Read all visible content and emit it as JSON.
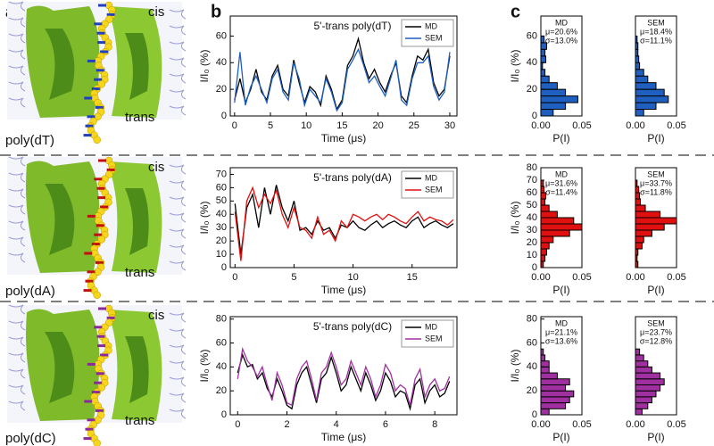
{
  "panel_labels": [
    "a",
    "b",
    "c"
  ],
  "structures": [
    {
      "label": "poly(dT)",
      "cis": "cis",
      "trans": "trans"
    },
    {
      "label": "poly(dA)",
      "cis": "cis",
      "trans": "trans"
    },
    {
      "label": "poly(dC)",
      "cis": "cis",
      "trans": "trans"
    }
  ],
  "chart_data": [
    {
      "type": "line",
      "title": "5'-trans poly(dT)",
      "xlabel": "Time (μs)",
      "ylabel": "I/I₀ (%)",
      "x": [
        0,
        0.75,
        1.5,
        2.25,
        3,
        3.75,
        4.5,
        5.25,
        6,
        6.75,
        7.5,
        8.25,
        9,
        9.75,
        10.5,
        11.25,
        12,
        12.75,
        13.5,
        14.25,
        15,
        15.75,
        16.5,
        17.25,
        18,
        18.75,
        19.5,
        20.25,
        21,
        21.75,
        22.5,
        23.25,
        24,
        24.75,
        25.5,
        26.25,
        27,
        27.75,
        28.5,
        29.25,
        30
      ],
      "series": [
        {
          "name": "MD",
          "color": "#000000",
          "values": [
            12,
            28,
            10,
            20,
            35,
            18,
            12,
            30,
            38,
            20,
            15,
            42,
            25,
            10,
            22,
            18,
            8,
            30,
            20,
            5,
            12,
            38,
            45,
            58,
            40,
            28,
            35,
            25,
            18,
            30,
            40,
            15,
            10,
            30,
            45,
            42,
            50,
            25,
            15,
            20,
            45
          ]
        },
        {
          "name": "SEM",
          "color": "#1f5fbf",
          "values": [
            10,
            48,
            8,
            22,
            30,
            20,
            10,
            28,
            35,
            18,
            12,
            40,
            28,
            8,
            20,
            15,
            10,
            28,
            18,
            4,
            10,
            35,
            42,
            50,
            38,
            25,
            30,
            22,
            15,
            28,
            42,
            12,
            8,
            28,
            40,
            40,
            45,
            22,
            12,
            18,
            48
          ]
        }
      ],
      "xlim": [
        -0.6,
        31
      ],
      "xticks": [
        0,
        5,
        10,
        15,
        20,
        25,
        30
      ],
      "ylim": [
        0,
        75
      ],
      "yticks": [
        0,
        20,
        40,
        60
      ],
      "legend": "upper right"
    },
    {
      "type": "histogram",
      "annotations": [
        "MD",
        "μ=20.6%",
        "σ=13.0%"
      ],
      "xlabel": "P(I)",
      "ylabel": "I/I₀ (%)",
      "color": "#1f5fbf",
      "bins": [
        0,
        5,
        10,
        15,
        20,
        25,
        30,
        35,
        40,
        45,
        50,
        55,
        60
      ],
      "values": [
        0.015,
        0.03,
        0.045,
        0.03,
        0.02,
        0.01,
        0.005,
        0.002,
        0.006,
        0.005,
        0.007,
        0.004
      ],
      "xlim": [
        0,
        0.05
      ],
      "xticks": [
        {
          "value": 0,
          "label": "0.00"
        },
        {
          "value": 0.05,
          "label": "0.05"
        }
      ],
      "ylim": [
        0,
        75
      ],
      "yticks": [
        0,
        20,
        40,
        60
      ]
    },
    {
      "type": "histogram",
      "annotations": [
        "SEM",
        "μ=18.4%",
        "σ=11.1%"
      ],
      "xlabel": "P(I)",
      "color": "#1f5fbf",
      "bins": [
        0,
        5,
        10,
        15,
        20,
        25,
        30,
        35,
        40,
        45,
        50,
        55,
        60
      ],
      "values": [
        0.01,
        0.025,
        0.04,
        0.035,
        0.025,
        0.015,
        0.01,
        0.005,
        0.004,
        0.003,
        0.003,
        0.002
      ],
      "xlim": [
        0,
        0.05
      ],
      "xticks": [
        {
          "value": 0,
          "label": "0.00"
        },
        {
          "value": 0.05,
          "label": "0.05"
        }
      ],
      "ylim": [
        0,
        75
      ]
    },
    {
      "type": "line",
      "title": "5'-trans poly(dA)",
      "xlabel": "Time (μs)",
      "ylabel": "I/I₀ (%)",
      "x": [
        0,
        0.5,
        1,
        1.5,
        2,
        2.5,
        3,
        3.5,
        4,
        4.5,
        5,
        5.5,
        6,
        6.5,
        7,
        7.5,
        8,
        8.5,
        9,
        9.5,
        10,
        10.5,
        11,
        11.5,
        12,
        12.5,
        13,
        13.5,
        14,
        14.5,
        15,
        15.5,
        16,
        16.5,
        17,
        17.5,
        18,
        18.5
      ],
      "series": [
        {
          "name": "MD",
          "color": "#000000",
          "values": [
            48,
            10,
            45,
            55,
            30,
            60,
            40,
            62,
            45,
            35,
            50,
            28,
            30,
            25,
            35,
            28,
            30,
            22,
            32,
            30,
            35,
            30,
            28,
            32,
            35,
            30,
            33,
            35,
            32,
            30,
            35,
            38,
            30,
            33,
            35,
            32,
            30,
            33
          ]
        },
        {
          "name": "SEM",
          "color": "#e01010",
          "values": [
            42,
            5,
            50,
            60,
            45,
            55,
            48,
            58,
            40,
            30,
            45,
            30,
            28,
            22,
            38,
            25,
            28,
            20,
            35,
            30,
            40,
            38,
            35,
            38,
            40,
            36,
            40,
            38,
            35,
            33,
            38,
            42,
            35,
            38,
            36,
            35,
            32,
            36
          ]
        }
      ],
      "xlim": [
        -0.4,
        18.8
      ],
      "xticks": [
        0,
        5,
        10,
        15
      ],
      "ylim": [
        0,
        75
      ],
      "yticks": [
        0,
        10,
        20,
        30,
        40,
        50,
        60,
        70
      ],
      "legend": "upper right"
    },
    {
      "type": "histogram",
      "annotations": [
        "MD",
        "μ=31.6%",
        "σ=11.4%"
      ],
      "xlabel": "P(I)",
      "ylabel": "I/I₀ (%)",
      "color": "#e01010",
      "bins": [
        0,
        5,
        10,
        15,
        20,
        25,
        30,
        35,
        40,
        45,
        50,
        55,
        60,
        65,
        70
      ],
      "values": [
        0.003,
        0.005,
        0.007,
        0.01,
        0.015,
        0.035,
        0.05,
        0.04,
        0.02,
        0.01,
        0.005,
        0.006,
        0.004,
        0.003
      ],
      "xlim": [
        0,
        0.05
      ],
      "xticks": [
        {
          "value": 0,
          "label": "0.00"
        },
        {
          "value": 0.05,
          "label": "0.05"
        }
      ],
      "ylim": [
        0,
        80
      ],
      "yticks": [
        0,
        10,
        20,
        30,
        40,
        50,
        60,
        70,
        80
      ]
    },
    {
      "type": "histogram",
      "annotations": [
        "SEM",
        "μ=33.7%",
        "σ=11.8%"
      ],
      "xlabel": "P(I)",
      "color": "#e01010",
      "bins": [
        0,
        5,
        10,
        15,
        20,
        25,
        30,
        35,
        40,
        45,
        50,
        55,
        60,
        65,
        70
      ],
      "values": [
        0.003,
        0.002,
        0.003,
        0.008,
        0.01,
        0.02,
        0.035,
        0.05,
        0.03,
        0.012,
        0.006,
        0.005,
        0.004,
        0.002
      ],
      "xlim": [
        0,
        0.05
      ],
      "xticks": [
        {
          "value": 0,
          "label": "0.00"
        },
        {
          "value": 0.05,
          "label": "0.05"
        }
      ],
      "ylim": [
        0,
        80
      ]
    },
    {
      "type": "line",
      "title": "5'-trans poly(dC)",
      "xlabel": "Time (μs)",
      "ylabel": "I/I₀ (%)",
      "x": [
        0,
        0.2,
        0.4,
        0.6,
        0.8,
        1,
        1.2,
        1.4,
        1.6,
        1.8,
        2,
        2.2,
        2.4,
        2.6,
        2.8,
        3,
        3.2,
        3.4,
        3.6,
        3.8,
        4,
        4.2,
        4.4,
        4.6,
        4.8,
        5,
        5.2,
        5.4,
        5.6,
        5.8,
        6,
        6.2,
        6.4,
        6.6,
        6.8,
        7,
        7.2,
        7.4,
        7.6,
        7.8,
        8,
        8.2,
        8.4,
        8.6
      ],
      "series": [
        {
          "name": "MD",
          "color": "#000000",
          "values": [
            35,
            50,
            40,
            42,
            30,
            35,
            22,
            15,
            30,
            20,
            8,
            5,
            25,
            35,
            40,
            25,
            10,
            30,
            35,
            48,
            35,
            20,
            25,
            40,
            30,
            20,
            35,
            25,
            12,
            20,
            35,
            28,
            15,
            20,
            18,
            5,
            25,
            30,
            10,
            20,
            25,
            15,
            18,
            28
          ]
        },
        {
          "name": "SEM",
          "color": "#a030a0",
          "values": [
            30,
            55,
            45,
            40,
            32,
            40,
            25,
            12,
            35,
            25,
            10,
            8,
            30,
            40,
            45,
            30,
            12,
            35,
            40,
            52,
            40,
            25,
            30,
            45,
            35,
            25,
            40,
            30,
            15,
            25,
            42,
            35,
            20,
            25,
            22,
            8,
            30,
            38,
            15,
            25,
            30,
            20,
            22,
            32
          ]
        }
      ],
      "xlim": [
        -0.3,
        8.9
      ],
      "xticks": [
        0,
        2,
        4,
        6,
        8
      ],
      "ylim": [
        0,
        82
      ],
      "yticks": [
        0,
        20,
        40,
        60,
        80
      ],
      "legend": "upper right"
    },
    {
      "type": "histogram",
      "annotations": [
        "MD",
        "μ=21.1%",
        "σ=13.6%"
      ],
      "xlabel": "P(I)",
      "ylabel": "I/I₀ (%)",
      "color": "#a030a0",
      "bins": [
        0,
        5,
        10,
        15,
        20,
        25,
        30,
        35,
        40,
        45,
        50,
        55
      ],
      "values": [
        0.01,
        0.03,
        0.035,
        0.04,
        0.03,
        0.035,
        0.02,
        0.01,
        0.01,
        0.005,
        0.003
      ],
      "xlim": [
        0,
        0.05
      ],
      "xticks": [
        {
          "value": 0,
          "label": "0.00"
        },
        {
          "value": 0.05,
          "label": "0.05"
        }
      ],
      "ylim": [
        0,
        82
      ],
      "yticks": [
        0,
        20,
        40,
        60,
        80
      ]
    },
    {
      "type": "histogram",
      "annotations": [
        "SEM",
        "μ=23.7%",
        "σ=12.8%"
      ],
      "xlabel": "P(I)",
      "color": "#a030a0",
      "bins": [
        0,
        5,
        10,
        15,
        20,
        25,
        30,
        35,
        40,
        45,
        50,
        55
      ],
      "values": [
        0.008,
        0.015,
        0.02,
        0.025,
        0.03,
        0.035,
        0.03,
        0.02,
        0.015,
        0.01,
        0.005
      ],
      "xlim": [
        0,
        0.05
      ],
      "xticks": [
        {
          "value": 0,
          "label": "0.00"
        },
        {
          "value": 0.05,
          "label": "0.05"
        }
      ],
      "ylim": [
        0,
        82
      ]
    }
  ]
}
